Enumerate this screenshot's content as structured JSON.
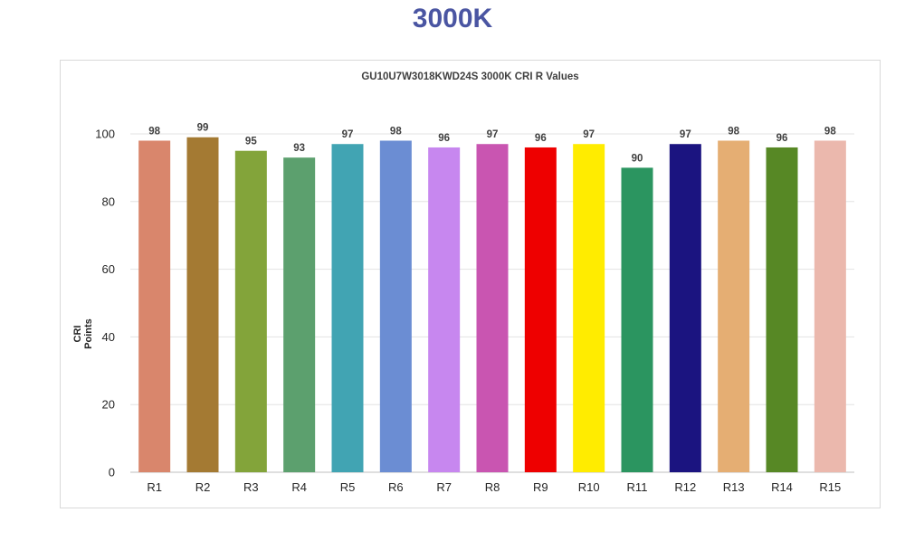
{
  "page": {
    "heading": "3000K"
  },
  "chart_data": {
    "type": "bar",
    "title": "GU10U7W3018KWD24S 3000K CRI R Values",
    "xlabel": "",
    "ylabel": "CRI Points",
    "ylim": [
      0,
      100
    ],
    "yticks": [
      0,
      20,
      40,
      60,
      80,
      100
    ],
    "grid": true,
    "legend": "none",
    "categories": [
      "R1",
      "R2",
      "R3",
      "R4",
      "R5",
      "R6",
      "R7",
      "R8",
      "R9",
      "R10",
      "R11",
      "R12",
      "R13",
      "R14",
      "R15"
    ],
    "values": [
      98,
      99,
      95,
      93,
      97,
      98,
      96,
      97,
      96,
      97,
      90,
      97,
      98,
      96,
      98
    ],
    "colors": [
      "#d9866c",
      "#a47a33",
      "#83a43a",
      "#5ca06e",
      "#41a4b3",
      "#6b8dd3",
      "#c787ef",
      "#c955b1",
      "#ee0000",
      "#ffec00",
      "#2b9560",
      "#1b1480",
      "#e5ae73",
      "#578825",
      "#ebb8ad"
    ]
  }
}
